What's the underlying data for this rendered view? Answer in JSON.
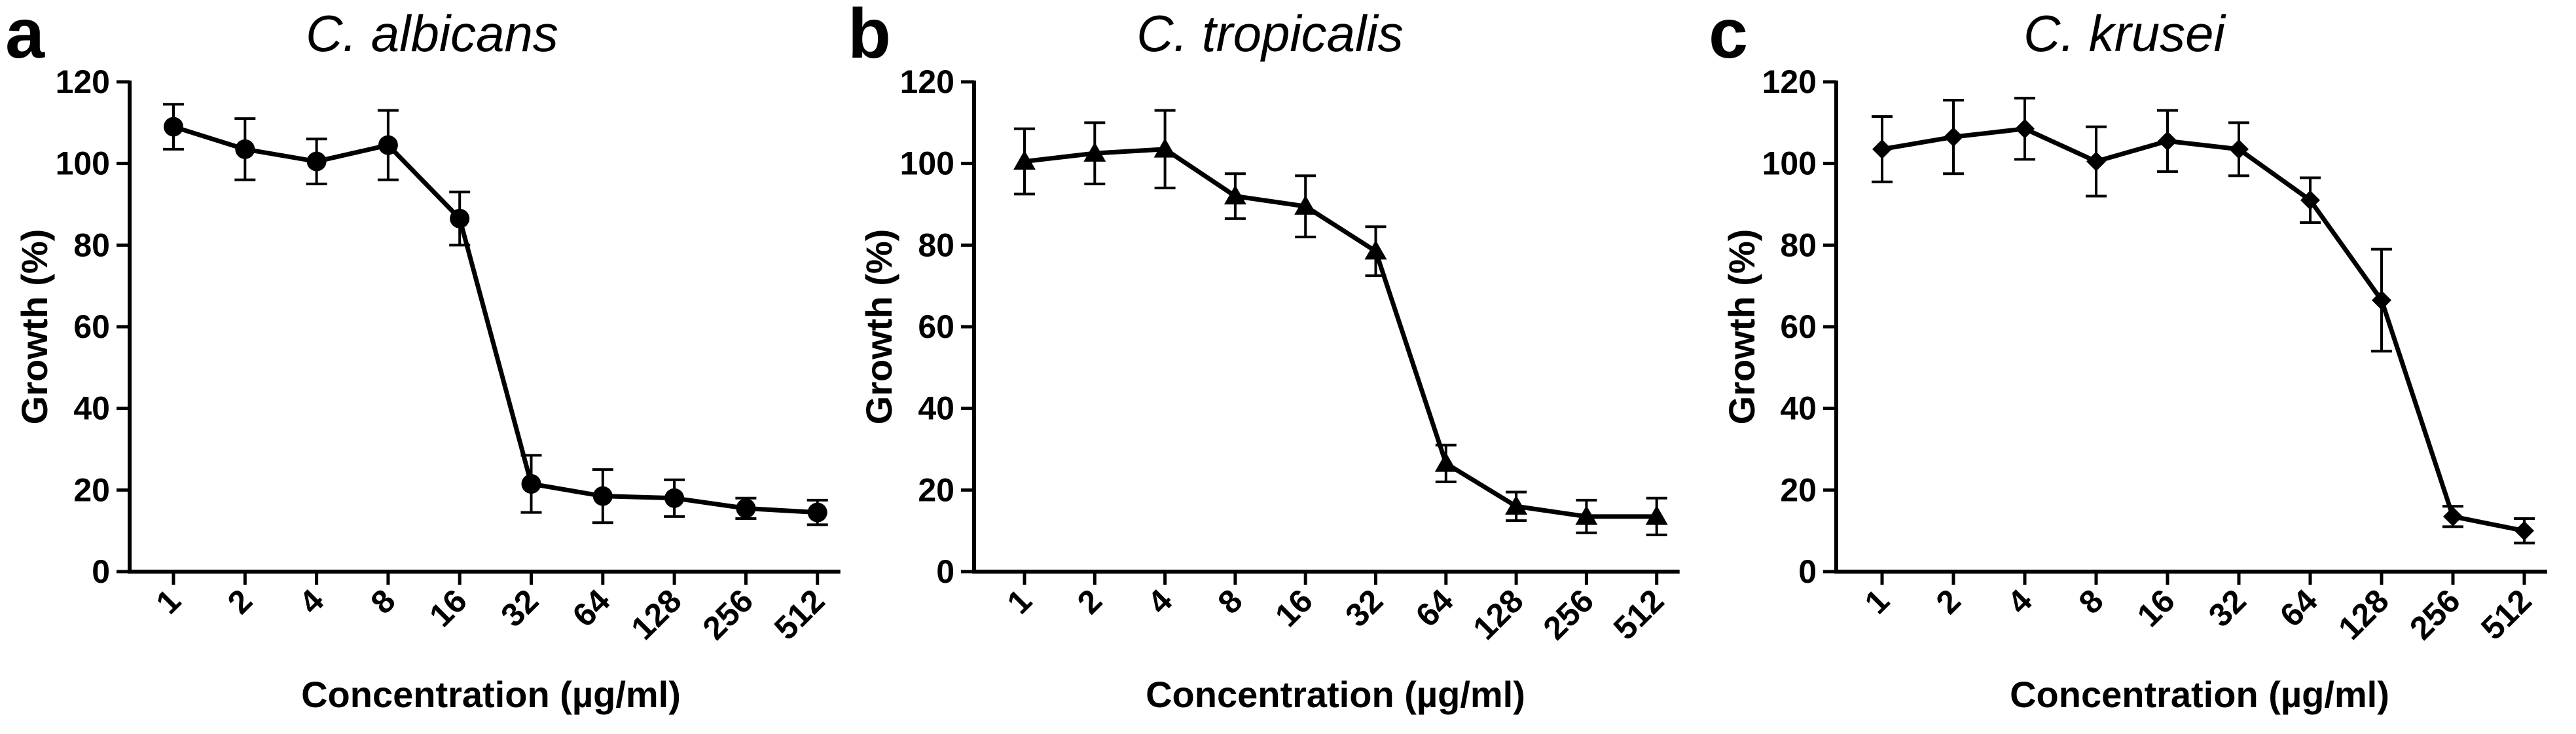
{
  "chart_data": [
    {
      "type": "line",
      "panel_label": "a",
      "title": "C. albicans",
      "xlabel": "Concentration (µg/ml)",
      "ylabel": "Growth (%)",
      "categories": [
        "1",
        "2",
        "4",
        "8",
        "16",
        "32",
        "64",
        "128",
        "256",
        "512"
      ],
      "values": [
        109,
        103.5,
        100.5,
        104.5,
        86.5,
        21.5,
        18.5,
        18,
        15.5,
        14.5
      ],
      "errors": [
        5.5,
        7.5,
        5.5,
        8.5,
        6.5,
        7,
        6.5,
        4.5,
        2.5,
        3
      ],
      "marker": "circle",
      "ylim": [
        0,
        120
      ],
      "yticks": [
        0,
        20,
        40,
        60,
        80,
        100,
        120
      ],
      "grid": false
    },
    {
      "type": "line",
      "panel_label": "b",
      "title": "C. tropicalis",
      "xlabel": "Concentration (µg/ml)",
      "ylabel": "Growth (%)",
      "categories": [
        "1",
        "2",
        "4",
        "8",
        "16",
        "32",
        "64",
        "128",
        "256",
        "512"
      ],
      "values": [
        100.5,
        102.5,
        103.5,
        92,
        89.5,
        78.5,
        26.5,
        16,
        13.5,
        13.5
      ],
      "errors": [
        8,
        7.5,
        9.5,
        5.5,
        7.5,
        6,
        4.5,
        3.5,
        4,
        4.5
      ],
      "marker": "triangle",
      "ylim": [
        0,
        120
      ],
      "yticks": [
        0,
        20,
        40,
        60,
        80,
        100,
        120
      ],
      "grid": false
    },
    {
      "type": "line",
      "panel_label": "c",
      "title": "C. krusei",
      "xlabel": "Concentration (µg/ml)",
      "ylabel": "Growth (%)",
      "categories": [
        "1",
        "2",
        "4",
        "8",
        "16",
        "32",
        "64",
        "128",
        "256",
        "512"
      ],
      "values": [
        103.5,
        106.5,
        108.5,
        100.5,
        105.5,
        103.5,
        91,
        66.5,
        13.5,
        10
      ],
      "errors": [
        8,
        9,
        7.5,
        8.5,
        7.5,
        6.5,
        5.5,
        12.5,
        2.5,
        3
      ],
      "marker": "diamond",
      "ylim": [
        0,
        120
      ],
      "yticks": [
        0,
        20,
        40,
        60,
        80,
        100,
        120
      ],
      "grid": false
    }
  ]
}
